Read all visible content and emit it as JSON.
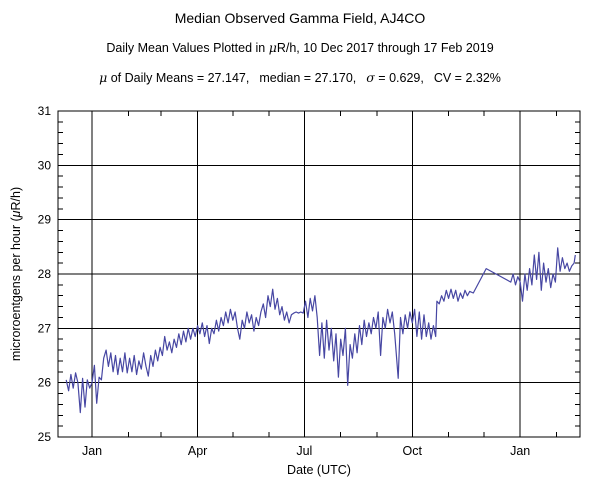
{
  "header": {
    "title": "Median Observed Gamma Field, AJ4CO",
    "subtitle_pre": "Daily Mean Values Plotted in ",
    "subtitle_sym": "μ",
    "subtitle_post": "R/h, 10 Dec 2017 through 17 Feb 2019",
    "stats_mu_sym": "μ",
    "stats_mu_text": " of Daily Means = 27.147,",
    "stats_median": "median = 27.170,",
    "stats_sigma_sym": "σ",
    "stats_sigma_text": " = 0.629,",
    "stats_cv": "CV = 2.32%"
  },
  "chart_data": {
    "type": "line",
    "title": "Median Observed Gamma Field, AJ4CO",
    "xlabel": "Date (UTC)",
    "ylabel_pre": "microroentgens per hour (",
    "ylabel_sym": "μ",
    "ylabel_post": "R/h)",
    "ylim": [
      25,
      31
    ],
    "y_major_step": 1,
    "y_minor_step": 0.2,
    "y_tick_labels": [
      "25",
      "26",
      "27",
      "28",
      "29",
      "30",
      "31"
    ],
    "x_axis_note": "day 0 = 10 Dec 2017, last day 434 = 17 Feb 2019",
    "x_axis_days": [
      -7,
      438
    ],
    "x_major_ticks": [
      {
        "day": 22,
        "label": "Jan"
      },
      {
        "day": 112,
        "label": "Apr"
      },
      {
        "day": 203,
        "label": "Jul"
      },
      {
        "day": 295,
        "label": "Oct"
      },
      {
        "day": 387,
        "label": "Jan"
      }
    ],
    "x_minor_tick_days": [
      53,
      81,
      142,
      173,
      234,
      265,
      326,
      356,
      418
    ],
    "grid": true,
    "grid_color": "#000000",
    "line_color": "#4747a3",
    "background": "#ffffff",
    "points": [
      [
        0,
        26.05
      ],
      [
        2,
        25.85
      ],
      [
        4,
        26.15
      ],
      [
        6,
        25.9
      ],
      [
        8,
        26.18
      ],
      [
        10,
        26.0
      ],
      [
        12,
        25.45
      ],
      [
        14,
        26.08
      ],
      [
        16,
        25.55
      ],
      [
        18,
        26.05
      ],
      [
        20,
        25.9
      ],
      [
        22,
        26.0
      ],
      [
        24,
        26.32
      ],
      [
        26,
        25.62
      ],
      [
        28,
        26.1
      ],
      [
        30,
        26.05
      ],
      [
        32,
        26.45
      ],
      [
        34,
        26.6
      ],
      [
        36,
        26.3
      ],
      [
        38,
        26.55
      ],
      [
        40,
        26.2
      ],
      [
        42,
        26.5
      ],
      [
        44,
        26.15
      ],
      [
        46,
        26.45
      ],
      [
        48,
        26.2
      ],
      [
        50,
        26.55
      ],
      [
        52,
        26.18
      ],
      [
        54,
        26.45
      ],
      [
        56,
        26.2
      ],
      [
        58,
        26.5
      ],
      [
        60,
        26.15
      ],
      [
        62,
        26.4
      ],
      [
        64,
        26.25
      ],
      [
        66,
        26.55
      ],
      [
        68,
        26.3
      ],
      [
        70,
        26.12
      ],
      [
        72,
        26.5
      ],
      [
        74,
        26.3
      ],
      [
        76,
        26.6
      ],
      [
        78,
        26.4
      ],
      [
        80,
        26.65
      ],
      [
        82,
        26.5
      ],
      [
        84,
        26.85
      ],
      [
        86,
        26.6
      ],
      [
        88,
        26.75
      ],
      [
        90,
        26.55
      ],
      [
        92,
        26.8
      ],
      [
        94,
        26.65
      ],
      [
        96,
        26.9
      ],
      [
        98,
        26.7
      ],
      [
        100,
        26.95
      ],
      [
        102,
        26.75
      ],
      [
        104,
        27.0
      ],
      [
        106,
        26.8
      ],
      [
        108,
        27.0
      ],
      [
        110,
        26.85
      ],
      [
        112,
        27.05
      ],
      [
        114,
        26.9
      ],
      [
        116,
        27.1
      ],
      [
        118,
        26.85
      ],
      [
        120,
        27.05
      ],
      [
        122,
        26.72
      ],
      [
        124,
        27.0
      ],
      [
        126,
        26.9
      ],
      [
        128,
        27.15
      ],
      [
        130,
        26.95
      ],
      [
        132,
        27.2
      ],
      [
        134,
        27.05
      ],
      [
        136,
        27.3
      ],
      [
        138,
        27.1
      ],
      [
        140,
        27.35
      ],
      [
        142,
        27.15
      ],
      [
        144,
        27.3
      ],
      [
        146,
        27.0
      ],
      [
        148,
        26.8
      ],
      [
        150,
        27.15
      ],
      [
        152,
        27.0
      ],
      [
        154,
        27.3
      ],
      [
        156,
        27.1
      ],
      [
        158,
        27.25
      ],
      [
        160,
        26.95
      ],
      [
        162,
        27.2
      ],
      [
        164,
        27.05
      ],
      [
        166,
        27.3
      ],
      [
        168,
        27.45
      ],
      [
        170,
        27.2
      ],
      [
        172,
        27.6
      ],
      [
        174,
        27.4
      ],
      [
        176,
        27.72
      ],
      [
        178,
        27.35
      ],
      [
        180,
        27.55
      ],
      [
        182,
        27.25
      ],
      [
        184,
        27.4
      ],
      [
        186,
        27.15
      ],
      [
        188,
        27.3
      ],
      [
        190,
        27.1
      ],
      [
        192,
        27.25
      ],
      [
        194,
        27.28
      ],
      [
        196,
        27.3
      ],
      [
        198,
        27.28
      ],
      [
        200,
        27.3
      ],
      [
        202,
        27.28
      ],
      [
        204,
        27.5
      ],
      [
        206,
        27.2
      ],
      [
        208,
        27.55
      ],
      [
        210,
        27.32
      ],
      [
        212,
        27.6
      ],
      [
        214,
        27.2
      ],
      [
        216,
        26.5
      ],
      [
        218,
        27.1
      ],
      [
        220,
        26.45
      ],
      [
        222,
        27.15
      ],
      [
        224,
        26.6
      ],
      [
        226,
        27.0
      ],
      [
        228,
        26.4
      ],
      [
        230,
        26.9
      ],
      [
        232,
        26.1
      ],
      [
        234,
        26.8
      ],
      [
        236,
        26.5
      ],
      [
        238,
        27.0
      ],
      [
        240,
        25.95
      ],
      [
        242,
        26.7
      ],
      [
        244,
        26.45
      ],
      [
        246,
        26.9
      ],
      [
        248,
        26.55
      ],
      [
        250,
        27.05
      ],
      [
        252,
        26.7
      ],
      [
        254,
        27.15
      ],
      [
        256,
        26.85
      ],
      [
        258,
        27.1
      ],
      [
        260,
        26.9
      ],
      [
        262,
        27.2
      ],
      [
        264,
        27.0
      ],
      [
        266,
        27.3
      ],
      [
        268,
        26.5
      ],
      [
        270,
        27.2
      ],
      [
        272,
        27.0
      ],
      [
        274,
        27.35
      ],
      [
        276,
        27.1
      ],
      [
        278,
        27.3
      ],
      [
        280,
        26.9
      ],
      [
        283,
        26.08
      ],
      [
        285,
        27.2
      ],
      [
        287,
        26.9
      ],
      [
        289,
        27.25
      ],
      [
        291,
        27.0
      ],
      [
        293,
        27.3
      ],
      [
        295,
        27.1
      ],
      [
        297,
        27.35
      ],
      [
        299,
        26.85
      ],
      [
        301,
        27.3
      ],
      [
        303,
        26.8
      ],
      [
        305,
        27.25
      ],
      [
        307,
        26.85
      ],
      [
        309,
        27.1
      ],
      [
        311,
        26.8
      ],
      [
        313,
        27.05
      ],
      [
        315,
        26.85
      ],
      [
        316,
        27.5
      ],
      [
        318,
        27.45
      ],
      [
        320,
        27.6
      ],
      [
        322,
        27.5
      ],
      [
        324,
        27.7
      ],
      [
        326,
        27.55
      ],
      [
        328,
        27.72
      ],
      [
        330,
        27.55
      ],
      [
        332,
        27.7
      ],
      [
        334,
        27.5
      ],
      [
        336,
        27.65
      ],
      [
        338,
        27.55
      ],
      [
        340,
        27.7
      ],
      [
        342,
        27.6
      ],
      [
        344,
        27.68
      ],
      [
        347,
        27.65
      ],
      [
        358,
        28.1
      ],
      [
        379,
        27.85
      ],
      [
        381,
        28.0
      ],
      [
        383,
        27.8
      ],
      [
        385,
        27.95
      ],
      [
        387,
        27.85
      ],
      [
        389,
        27.5
      ],
      [
        391,
        28.0
      ],
      [
        393,
        27.7
      ],
      [
        395,
        28.1
      ],
      [
        397,
        27.8
      ],
      [
        399,
        28.35
      ],
      [
        401,
        27.9
      ],
      [
        403,
        28.4
      ],
      [
        405,
        27.7
      ],
      [
        407,
        28.2
      ],
      [
        409,
        27.85
      ],
      [
        411,
        28.1
      ],
      [
        413,
        27.75
      ],
      [
        415,
        28.0
      ],
      [
        417,
        27.85
      ],
      [
        419,
        28.48
      ],
      [
        421,
        28.05
      ],
      [
        423,
        28.3
      ],
      [
        425,
        28.1
      ],
      [
        427,
        28.2
      ],
      [
        429,
        28.05
      ],
      [
        431,
        28.15
      ],
      [
        433,
        28.2
      ],
      [
        434,
        28.35
      ]
    ]
  },
  "layout_note": "single time-series line plot, solid black major grid, inward minor ticks"
}
